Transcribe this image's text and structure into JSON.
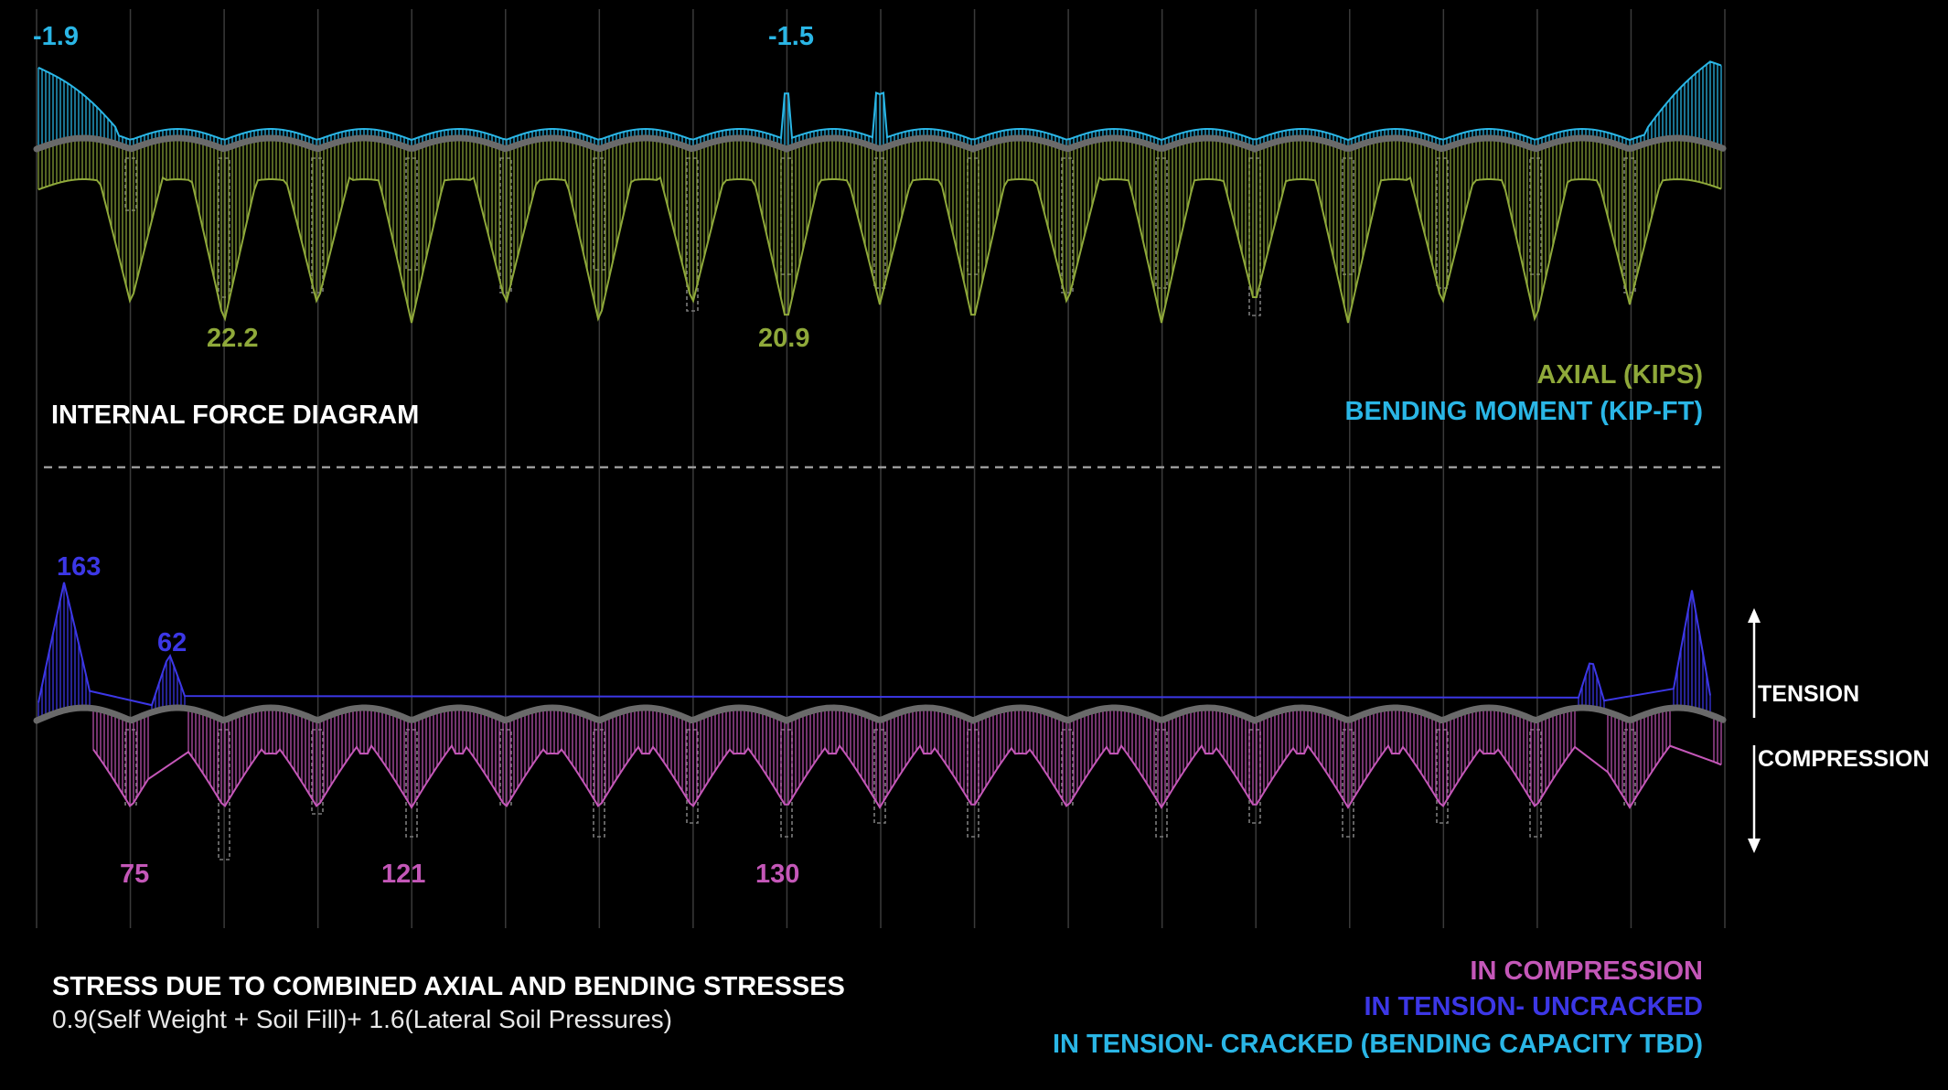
{
  "colors": {
    "axial": "#8fa93a",
    "moment": "#2ab6e6",
    "compression": "#c457b8",
    "tension_uncracked": "#3c37e6",
    "tension_cracked": "#2ab6e6",
    "text": "#ffffff",
    "member": "#6a6a6a",
    "grid": "#3a3a3a",
    "pile": "#7a7a7a"
  },
  "top_panel": {
    "title": "INTERNAL FORCE DIAGRAM",
    "legend": {
      "axial": "AXIAL (KIPS)",
      "moment": "BENDING MOMENT (KIP-FT)"
    },
    "moment_labels": [
      "-1.9",
      "-1.5"
    ],
    "axial_labels": [
      "22.2",
      "20.9"
    ]
  },
  "bottom_panel": {
    "title": "STRESS DUE TO COMBINED AXIAL AND BENDING STRESSES",
    "load_combination": "0.9(Self Weight + Soil Fill)+ 1.6(Lateral Soil Pressures)",
    "legend": {
      "compression": "IN COMPRESSION",
      "tension_uncracked": "IN TENSION- UNCRACKED",
      "tension_cracked": "IN TENSION- CRACKED (BENDING CAPACITY TBD)"
    },
    "tension_labels": [
      "163",
      "62"
    ],
    "compression_labels": [
      "75",
      "121",
      "130"
    ],
    "direction": {
      "tension": "TENSION",
      "compression": "COMPRESSION"
    }
  }
}
